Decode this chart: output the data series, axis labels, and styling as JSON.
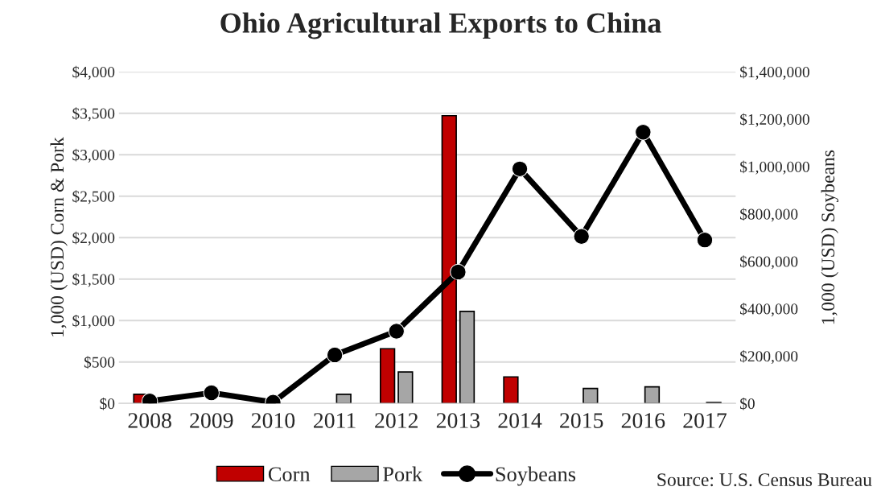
{
  "chart_data": {
    "type": "bar",
    "title": "Ohio Agricultural Exports to China",
    "categories": [
      "2008",
      "2009",
      "2010",
      "2011",
      "2012",
      "2013",
      "2014",
      "2015",
      "2016",
      "2017"
    ],
    "series": [
      {
        "name": "Corn",
        "color": "#c00000",
        "values": [
          110,
          null,
          null,
          null,
          660,
          3470,
          320,
          null,
          null,
          null
        ]
      },
      {
        "name": "Pork",
        "color": "#a6a6a6",
        "values": [
          null,
          null,
          null,
          110,
          380,
          1110,
          null,
          180,
          200,
          10
        ]
      },
      {
        "name": "Soybeans",
        "type": "line",
        "axis": "y2",
        "color": "#000000",
        "marker": "circle",
        "line_style": "solid",
        "values": [
          10000,
          45000,
          5000,
          205000,
          305000,
          555000,
          990000,
          705000,
          1145000,
          690000
        ]
      }
    ],
    "ylabel": "1,000 (USD) Corn & Pork",
    "y2label": "1,000 (USD) Soybeans",
    "ylim": [
      0,
      4000
    ],
    "yticks": [
      {
        "value": 0,
        "label": "$0"
      },
      {
        "value": 500,
        "label": "$500"
      },
      {
        "value": 1000,
        "label": "$1,000"
      },
      {
        "value": 1500,
        "label": "$1,500"
      },
      {
        "value": 2000,
        "label": "$2,000"
      },
      {
        "value": 2500,
        "label": "$2,500"
      },
      {
        "value": 3000,
        "label": "$3,000"
      },
      {
        "value": 3500,
        "label": "$3,500"
      },
      {
        "value": 4000,
        "label": "$4,000"
      }
    ],
    "y2lim": [
      0,
      1400000
    ],
    "y2ticks": [
      {
        "value": 0,
        "label": "$0"
      },
      {
        "value": 200000,
        "label": "$200,000"
      },
      {
        "value": 400000,
        "label": "$400,000"
      },
      {
        "value": 600000,
        "label": "$600,000"
      },
      {
        "value": 800000,
        "label": "$800,000"
      },
      {
        "value": 1000000,
        "label": "$1,000,000"
      },
      {
        "value": 1200000,
        "label": "$1,200,000"
      },
      {
        "value": 1400000,
        "label": "$1,400,000"
      }
    ],
    "grid": "y",
    "legend": "bottom",
    "annotations": [
      "Source: U.S. Census Bureau"
    ]
  }
}
